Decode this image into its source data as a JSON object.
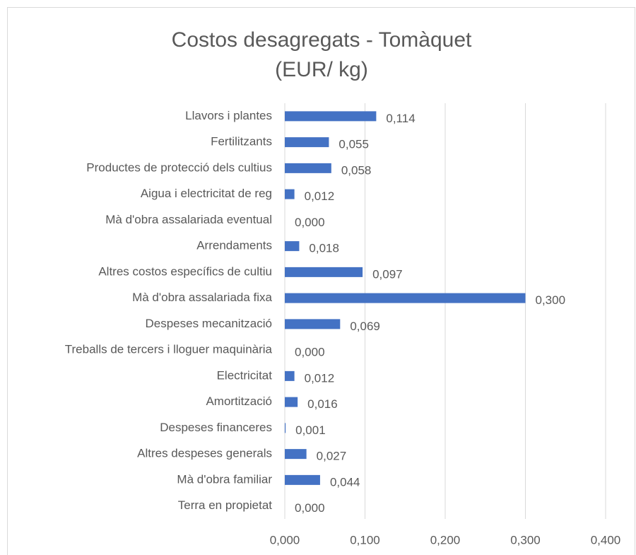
{
  "chart_data": {
    "type": "hbar",
    "title": "Costos desagregats - Tomàquet",
    "subtitle": "(EUR/ kg)",
    "categories": [
      "Llavors i plantes",
      "Fertilitzants",
      "Productes de protecció dels cultius",
      "Aigua i electricitat de reg",
      "Mà d'obra assalariada eventual",
      "Arrendaments",
      "Altres costos específics de cultiu",
      "Mà d'obra assalariada fixa",
      "Despeses mecanització",
      "Treballs de tercers i lloguer maquinària",
      "Electricitat",
      "Amortització",
      "Despeses financeres",
      "Altres despeses generals",
      "Mà d'obra familiar",
      "Terra en propietat"
    ],
    "values": [
      0.114,
      0.055,
      0.058,
      0.012,
      0,
      0.018,
      0.097,
      0.3,
      0.069,
      0,
      0.012,
      0.016,
      0.001,
      0.027,
      0.044,
      0
    ],
    "value_labels": [
      "0,114",
      "0,055",
      "0,058",
      "0,012",
      "0,000",
      "0,018",
      "0,097",
      "0,300",
      "0,069",
      "0,000",
      "0,012",
      "0,016",
      "0,001",
      "0,027",
      "0,044",
      "0,000"
    ],
    "color": "#4472c4",
    "xlim": [
      0,
      0.4
    ],
    "xticks": [
      {
        "value": 0,
        "label": "0,000"
      },
      {
        "value": 0.1,
        "label": "0,100"
      },
      {
        "value": 0.2,
        "label": "0,200"
      },
      {
        "value": 0.3,
        "label": "0,300"
      },
      {
        "value": 0.4,
        "label": "0,400"
      }
    ],
    "grid": true
  }
}
